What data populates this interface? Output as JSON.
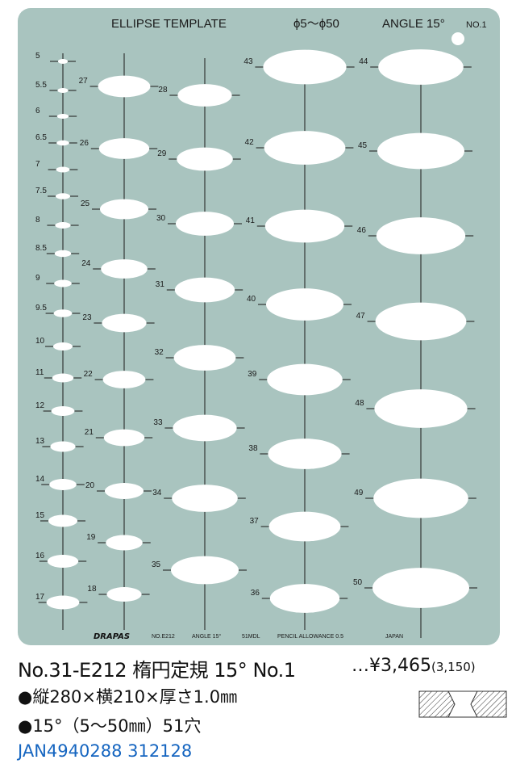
{
  "plate": {
    "title": "ELLIPSE  TEMPLATE",
    "range": "ϕ5～ϕ50",
    "angle": "ANGLE  15°",
    "number": "NO.1",
    "footer": {
      "brand": "DRAPAS",
      "model": "NO.E212",
      "angle": "ANGLE  15°",
      "code": "51MDL",
      "pencil": "PENCIL ALLOWANCE 0.5",
      "origin": "JAPAN"
    },
    "colors": {
      "plate": "#a9c4bf",
      "hole": "#ffffff",
      "line": "#1a1a1a"
    },
    "ellipse_sizes": [
      "5",
      "5.5",
      "6",
      "6.5",
      "7",
      "7.5",
      "8",
      "8.5",
      "9",
      "9.5",
      "10",
      "11",
      "12",
      "13",
      "14",
      "15",
      "16",
      "17",
      "18",
      "19",
      "20",
      "21",
      "22",
      "23",
      "24",
      "25",
      "26",
      "27",
      "28",
      "29",
      "30",
      "31",
      "32",
      "33",
      "34",
      "35",
      "36",
      "37",
      "38",
      "39",
      "40",
      "41",
      "42",
      "43",
      "44",
      "45",
      "46",
      "47",
      "48",
      "49",
      "50"
    ]
  },
  "product": {
    "name": "No.31-E212 楕円定規 15° No.1",
    "price": "…¥3,465",
    "price_tax": "(3,150)",
    "spec_dimensions": "●縦280×横210×厚さ1.0㎜",
    "spec_holes": "●15°（5〜50㎜）51穴",
    "jan": "JAN4940288 312128",
    "profile_icon": "cross-section-profile-icon"
  }
}
